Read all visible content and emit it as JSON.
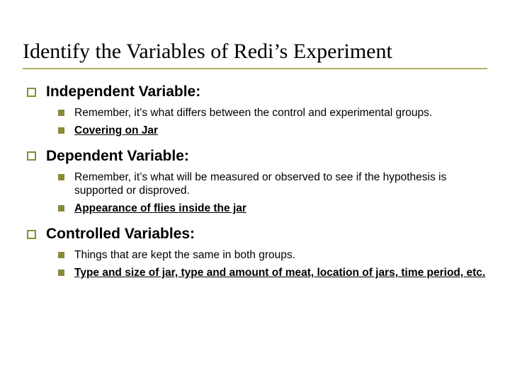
{
  "colors": {
    "accent": "#8a8a3a",
    "rule": "#b0b060",
    "text": "#000000"
  },
  "typography": {
    "title_font": "Times New Roman",
    "body_font": "Verdana",
    "title_size_pt": 30,
    "section_size_pt": 21,
    "item_size_pt": 15.5
  },
  "title": "Identify the Variables of Redi’s Experiment",
  "sections": [
    {
      "heading": "Independent Variable:",
      "items": [
        {
          "text": "Remember, it’s what differs between the control and experimental groups.",
          "emphasis": false
        },
        {
          "text": "Covering on Jar",
          "emphasis": true
        }
      ]
    },
    {
      "heading": "Dependent Variable:",
      "items": [
        {
          "text": "Remember, it’s what will be measured or observed to see if the hypothesis is supported or disproved.",
          "emphasis": false
        },
        {
          "text": "Appearance of flies inside the jar",
          "emphasis": true
        }
      ]
    },
    {
      "heading": "Controlled Variables:",
      "items": [
        {
          "text": "Things that are kept the same in both groups.",
          "emphasis": false
        },
        {
          "text": "Type and size of jar, type and amount of meat, location of jars, time period, etc.",
          "emphasis": true
        }
      ]
    }
  ]
}
